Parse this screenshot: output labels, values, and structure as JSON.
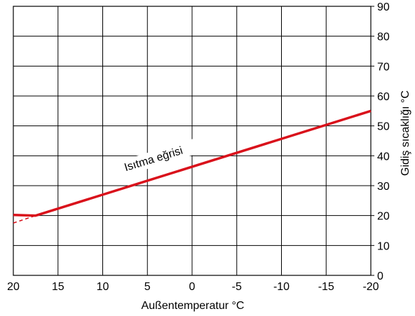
{
  "chart_data": {
    "type": "line",
    "title": "",
    "xlabel": "Außentemperatur °C",
    "ylabel": "Gidiş sıcaklığı °C",
    "xlim": [
      20,
      -20
    ],
    "ylim": [
      0,
      90
    ],
    "x_ticks": [
      20,
      15,
      10,
      5,
      0,
      -5,
      -10,
      -15,
      -20
    ],
    "y_ticks": [
      0,
      10,
      20,
      30,
      40,
      50,
      60,
      70,
      80,
      90
    ],
    "grid": true,
    "series": [
      {
        "name": "Isıtma eğrisi",
        "style": "solid",
        "color": "#d9111b",
        "x": [
          20,
          17.5,
          -20
        ],
        "y": [
          20.2,
          20,
          55
        ]
      },
      {
        "name": "",
        "style": "dashed",
        "color": "#d9111b",
        "x": [
          20,
          17.5
        ],
        "y": [
          17.5,
          20
        ]
      }
    ],
    "annotations": [
      {
        "text": "Isıtma eğrisi",
        "x": 4.2,
        "y": 37.8,
        "angle": -17
      }
    ]
  }
}
